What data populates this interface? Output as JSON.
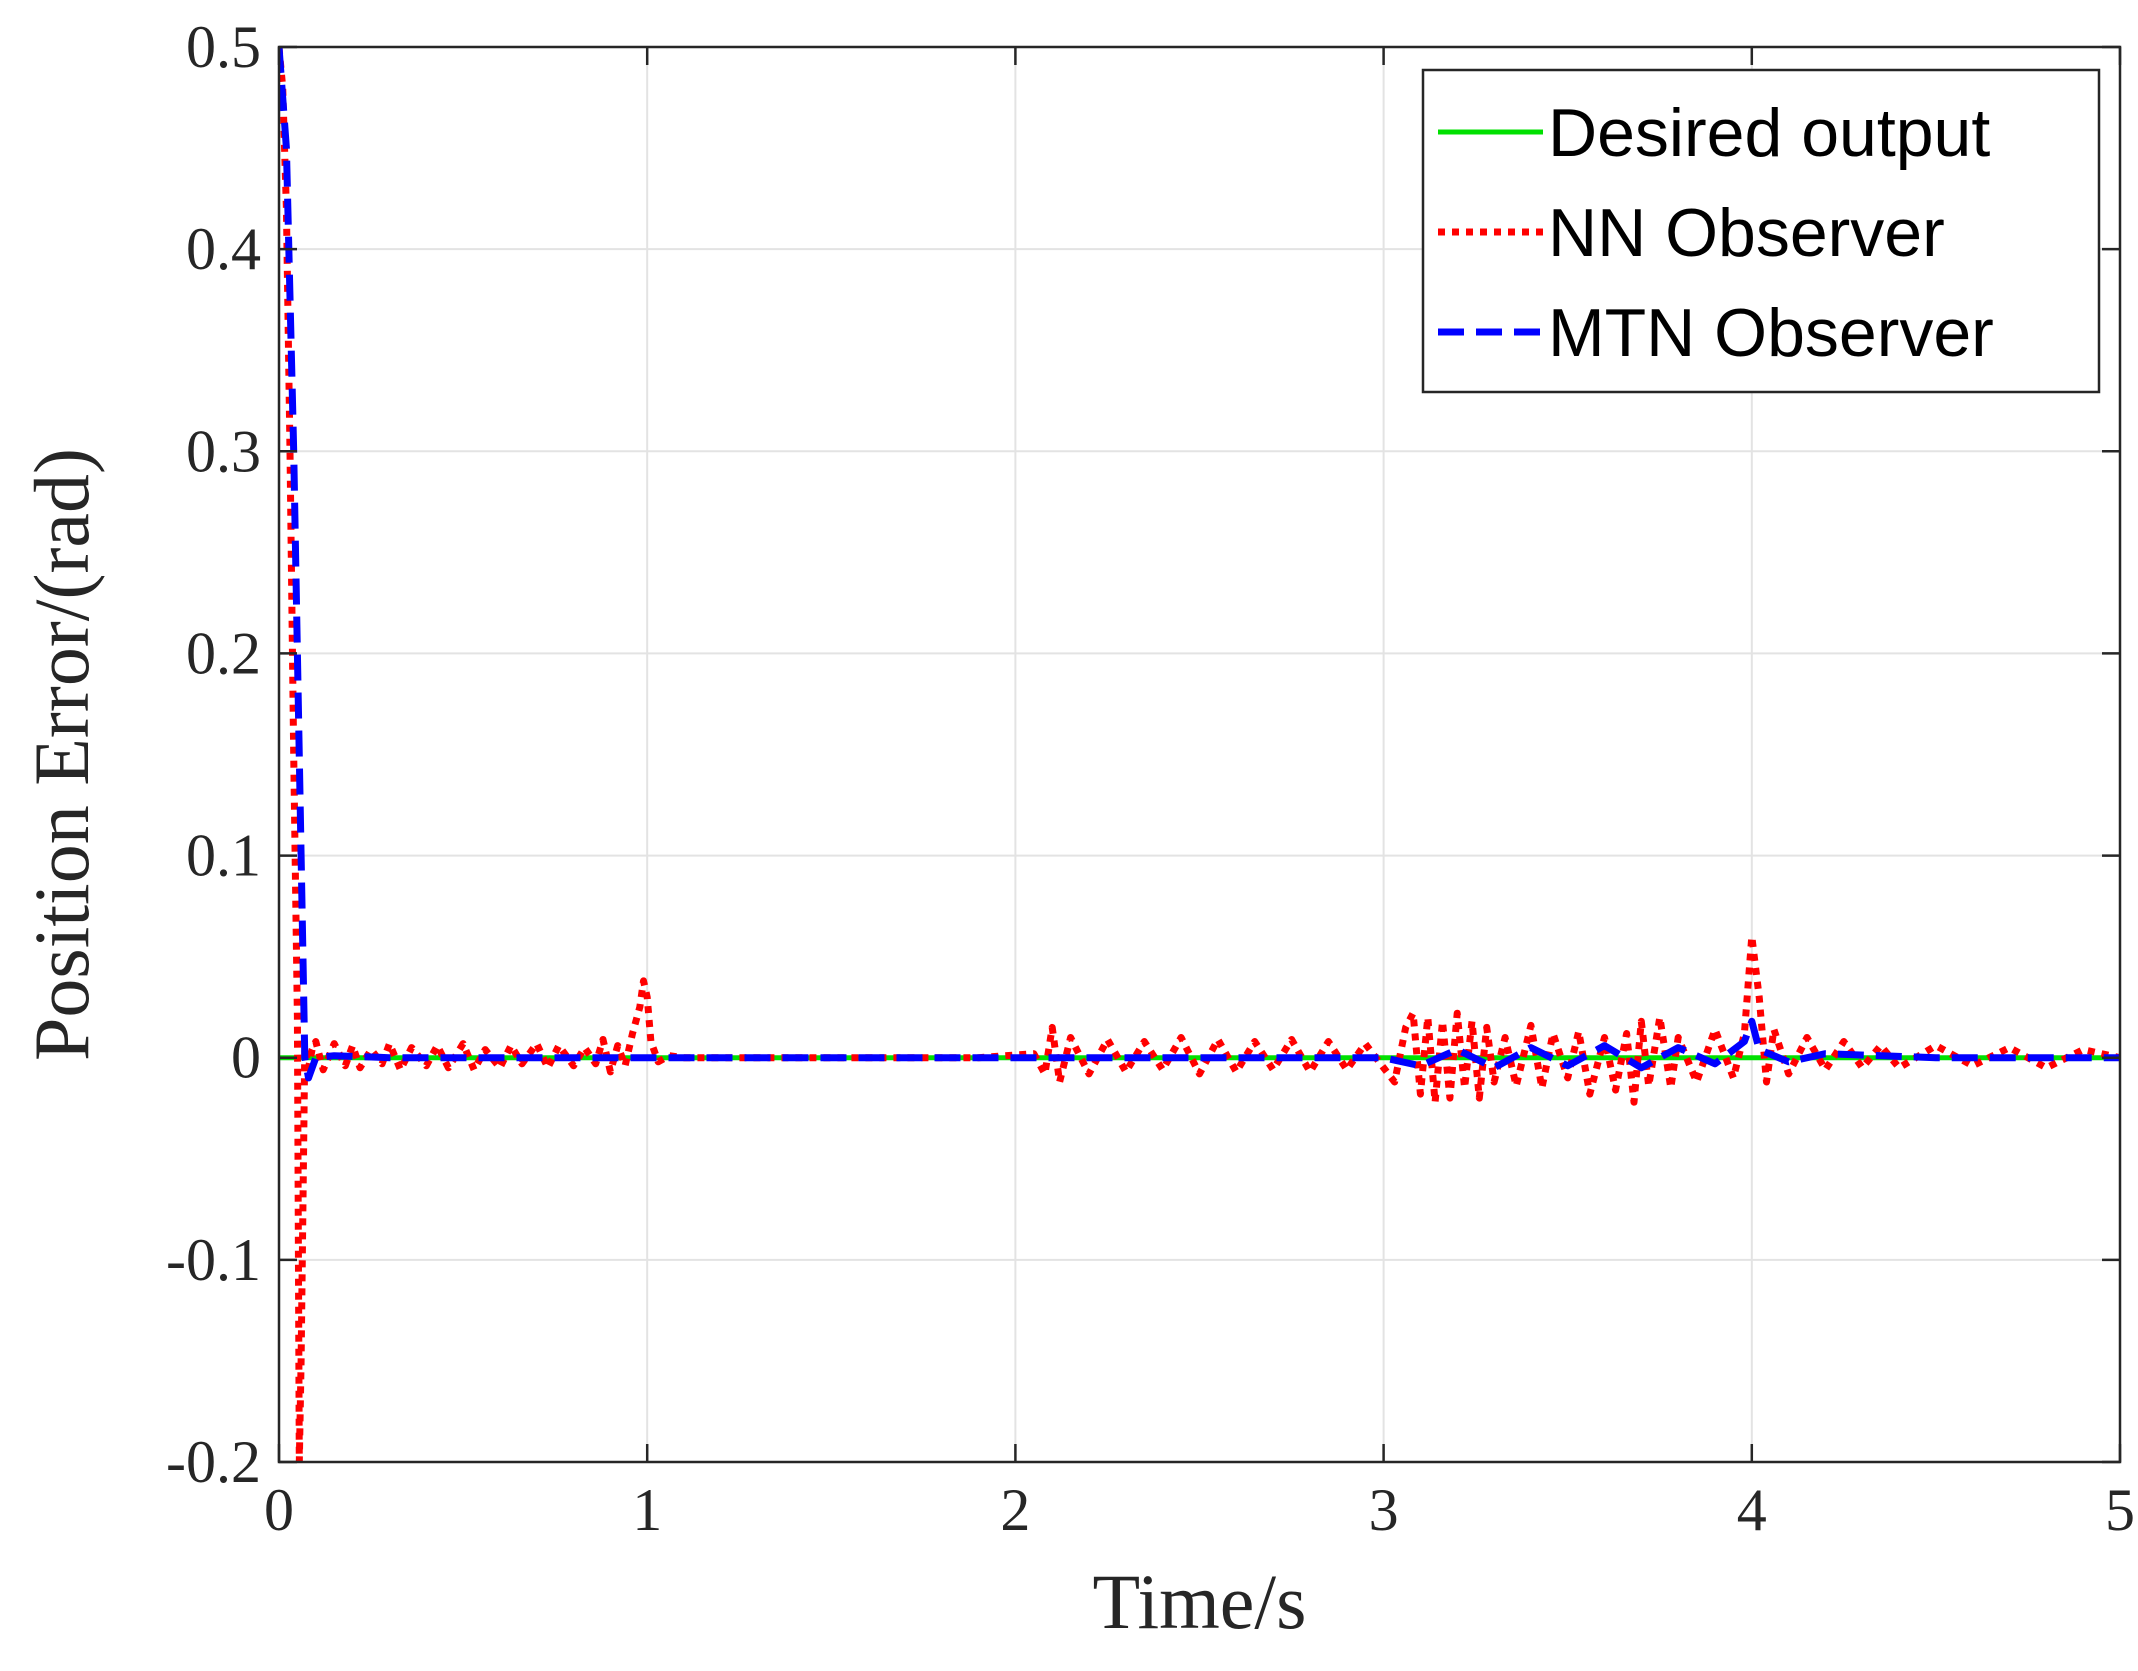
{
  "chart_data": {
    "type": "line",
    "title": "",
    "xlabel": "Time/s",
    "ylabel": "Position Error/(rad)",
    "xlim": [
      0,
      5
    ],
    "ylim": [
      -0.2,
      0.5
    ],
    "xticks": [
      0,
      1,
      2,
      3,
      4,
      5
    ],
    "xtick_labels": [
      "0",
      "1",
      "2",
      "3",
      "4",
      "5"
    ],
    "yticks": [
      -0.2,
      -0.1,
      0,
      0.1,
      0.2,
      0.3,
      0.4,
      0.5
    ],
    "ytick_labels": [
      "-0.2",
      "-0.1",
      "0",
      "0.1",
      "0.2",
      "0.3",
      "0.4",
      "0.5"
    ],
    "grid": true,
    "legend_position": "top-right",
    "series": [
      {
        "name": "Desired output",
        "color": "#00e000",
        "style": "solid",
        "x": [
          0,
          5
        ],
        "y": [
          0,
          0
        ]
      },
      {
        "name": "NN Observer",
        "color": "#ff0000",
        "style": "dotted",
        "x": [
          0,
          0.01,
          0.02,
          0.03,
          0.04,
          0.05,
          0.055,
          0.06,
          0.07,
          0.08,
          0.09,
          0.1,
          0.12,
          0.15,
          0.18,
          0.2,
          0.22,
          0.25,
          0.28,
          0.3,
          0.33,
          0.36,
          0.4,
          0.43,
          0.46,
          0.5,
          0.53,
          0.56,
          0.6,
          0.63,
          0.66,
          0.7,
          0.73,
          0.76,
          0.8,
          0.83,
          0.86,
          0.88,
          0.9,
          0.92,
          0.94,
          0.96,
          0.98,
          0.99,
          1.0,
          1.01,
          1.03,
          1.06,
          1.1,
          1.5,
          1.9,
          2.05,
          2.08,
          2.1,
          2.12,
          2.15,
          2.2,
          2.25,
          2.3,
          2.35,
          2.4,
          2.45,
          2.5,
          2.55,
          2.6,
          2.65,
          2.7,
          2.75,
          2.8,
          2.85,
          2.9,
          2.95,
          3.0,
          3.03,
          3.06,
          3.08,
          3.1,
          3.12,
          3.14,
          3.16,
          3.18,
          3.2,
          3.22,
          3.24,
          3.26,
          3.28,
          3.3,
          3.33,
          3.36,
          3.4,
          3.43,
          3.46,
          3.5,
          3.53,
          3.56,
          3.6,
          3.63,
          3.66,
          3.68,
          3.7,
          3.72,
          3.75,
          3.78,
          3.8,
          3.85,
          3.9,
          3.95,
          3.98,
          4.0,
          4.02,
          4.04,
          4.06,
          4.1,
          4.15,
          4.2,
          4.25,
          4.3,
          4.35,
          4.4,
          4.5,
          4.6,
          4.7,
          4.8,
          4.9,
          5.0
        ],
        "y": [
          0.5,
          0.48,
          0.42,
          0.3,
          0.15,
          0.02,
          -0.2,
          -0.15,
          0.005,
          -0.005,
          0.004,
          0.008,
          -0.006,
          0.007,
          -0.004,
          0.006,
          -0.005,
          0.004,
          -0.003,
          0.007,
          -0.006,
          0.005,
          -0.004,
          0.006,
          -0.005,
          0.007,
          -0.006,
          0.004,
          -0.005,
          0.006,
          -0.003,
          0.007,
          -0.005,
          0.006,
          -0.004,
          0.005,
          -0.003,
          0.009,
          -0.007,
          0.006,
          -0.004,
          0.012,
          0.025,
          0.038,
          0.03,
          0.008,
          -0.002,
          0.001,
          0.0,
          0.0,
          0.0,
          0.002,
          -0.008,
          0.015,
          -0.012,
          0.01,
          -0.008,
          0.009,
          -0.007,
          0.008,
          -0.006,
          0.01,
          -0.008,
          0.009,
          -0.007,
          0.008,
          -0.006,
          0.009,
          -0.007,
          0.008,
          -0.006,
          0.007,
          -0.005,
          -0.012,
          0.015,
          0.022,
          -0.018,
          0.02,
          -0.022,
          0.018,
          -0.02,
          0.022,
          -0.015,
          0.018,
          -0.02,
          0.015,
          -0.012,
          0.01,
          -0.014,
          0.016,
          -0.015,
          0.012,
          -0.01,
          0.013,
          -0.018,
          0.01,
          -0.016,
          0.012,
          -0.022,
          0.018,
          -0.014,
          0.02,
          -0.015,
          0.01,
          -0.012,
          0.014,
          -0.01,
          0.012,
          0.06,
          0.03,
          -0.012,
          0.014,
          -0.008,
          0.01,
          -0.006,
          0.008,
          -0.005,
          0.006,
          -0.005,
          0.006,
          -0.004,
          0.005,
          -0.005,
          0.004,
          0.0
        ]
      },
      {
        "name": "MTN Observer",
        "color": "#0000ff",
        "style": "dashed",
        "x": [
          0,
          0.02,
          0.04,
          0.06,
          0.07,
          0.08,
          0.1,
          0.15,
          0.3,
          1.0,
          2.0,
          3.0,
          3.1,
          3.2,
          3.3,
          3.4,
          3.5,
          3.6,
          3.7,
          3.8,
          3.9,
          3.98,
          4.0,
          4.02,
          4.1,
          4.2,
          4.5,
          5.0
        ],
        "y": [
          0.5,
          0.45,
          0.3,
          0.1,
          0.0,
          -0.01,
          0.0,
          0.001,
          0.0,
          0.0,
          0.0,
          0.0,
          -0.004,
          0.004,
          -0.005,
          0.005,
          -0.004,
          0.006,
          -0.005,
          0.005,
          -0.003,
          0.008,
          0.018,
          0.004,
          -0.002,
          0.002,
          0.0,
          0.0
        ]
      }
    ]
  }
}
